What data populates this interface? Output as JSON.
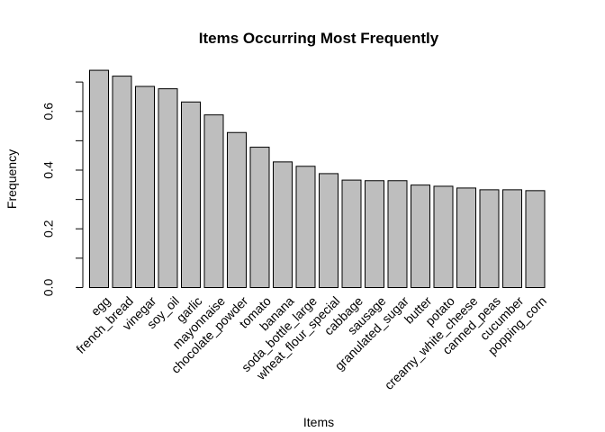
{
  "chart_data": {
    "type": "bar",
    "title": "Items Occurring Most Frequently",
    "xlabel": "Items",
    "ylabel": "Frequency",
    "categories": [
      "egg",
      "french_bread",
      "vinegar",
      "soy_oil",
      "garlic",
      "mayonnaise",
      "chocolate_powder",
      "tomato",
      "banana",
      "soda_bottle_large",
      "wheat_flour_special",
      "cabbage",
      "sausage",
      "granulated_sugar",
      "butter",
      "potato",
      "creamy_white_cheese",
      "canned_peas",
      "cucumber",
      "popping_corn"
    ],
    "values": [
      0.74,
      0.72,
      0.685,
      0.677,
      0.632,
      0.588,
      0.528,
      0.478,
      0.428,
      0.413,
      0.388,
      0.366,
      0.364,
      0.364,
      0.349,
      0.345,
      0.339,
      0.333,
      0.333,
      0.33
    ],
    "ylim": [
      0,
      0.7
    ],
    "yticks": [
      "0.0",
      "0.2",
      "0.4",
      "0.6"
    ],
    "grid": false,
    "bar_color": "#bebebe"
  }
}
